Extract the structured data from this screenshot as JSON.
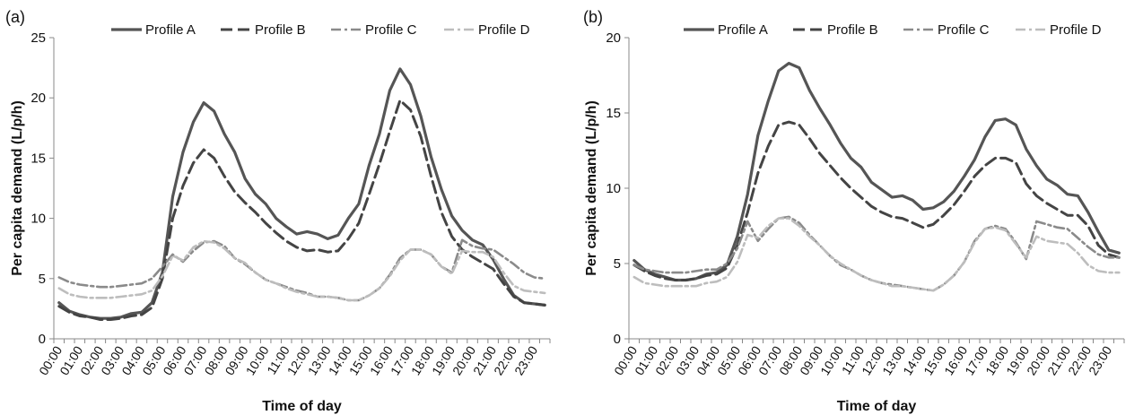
{
  "chart_data": [
    {
      "panel_label": "(a)",
      "type": "line",
      "xlabel": "Time of day",
      "ylabel": "Per capita demand (L/p/h)",
      "ylim": [
        0,
        25
      ],
      "yticks": [
        0,
        5,
        10,
        15,
        20,
        25
      ],
      "grid": false,
      "legend_position": "top",
      "x": [
        "00:00",
        "00:30",
        "01:00",
        "01:30",
        "02:00",
        "02:30",
        "03:00",
        "03:30",
        "04:00",
        "04:30",
        "05:00",
        "05:30",
        "06:00",
        "06:30",
        "07:00",
        "07:30",
        "08:00",
        "08:30",
        "09:00",
        "09:30",
        "10:00",
        "10:30",
        "11:00",
        "11:30",
        "12:00",
        "12:30",
        "13:00",
        "13:30",
        "14:00",
        "14:30",
        "15:00",
        "15:30",
        "16:00",
        "16:30",
        "17:00",
        "17:30",
        "18:00",
        "18:30",
        "19:00",
        "19:30",
        "20:00",
        "20:30",
        "21:00",
        "21:30",
        "22:00",
        "22:30",
        "23:00",
        "23:30"
      ],
      "xtick_labels": [
        "00:00",
        "01:00",
        "02:00",
        "03:00",
        "04:00",
        "05:00",
        "06:00",
        "07:00",
        "08:00",
        "09:00",
        "10:00",
        "11:00",
        "12:00",
        "13:00",
        "14:00",
        "15:00",
        "16:00",
        "17:00",
        "18:00",
        "19:00",
        "20:00",
        "21:00",
        "22:00",
        "23:00"
      ],
      "series": [
        {
          "name": "Profile A",
          "style": "solid",
          "color": "#555555",
          "values": [
            3.0,
            2.3,
            2.0,
            1.8,
            1.7,
            1.7,
            1.8,
            2.1,
            2.2,
            3.0,
            5.5,
            11.8,
            15.5,
            18.0,
            19.6,
            18.9,
            17.0,
            15.5,
            13.3,
            12.0,
            11.2,
            10.0,
            9.3,
            8.7,
            8.9,
            8.7,
            8.3,
            8.6,
            10.0,
            11.2,
            14.4,
            17.0,
            20.6,
            22.4,
            21.1,
            18.5,
            15.1,
            12.4,
            10.2,
            9.0,
            8.2,
            7.8,
            6.6,
            5.0,
            3.6,
            3.0,
            2.9,
            2.8
          ]
        },
        {
          "name": "Profile B",
          "style": "dash",
          "color": "#444444",
          "values": [
            2.7,
            2.2,
            1.9,
            1.8,
            1.6,
            1.6,
            1.7,
            1.9,
            2.0,
            2.6,
            5.0,
            10.0,
            12.7,
            14.6,
            15.7,
            15.0,
            13.5,
            12.2,
            11.3,
            10.5,
            9.6,
            8.8,
            8.1,
            7.6,
            7.3,
            7.4,
            7.2,
            7.3,
            8.3,
            9.6,
            12.0,
            14.5,
            17.2,
            19.8,
            19.0,
            16.8,
            13.5,
            10.5,
            8.5,
            7.4,
            6.8,
            6.3,
            5.8,
            4.6,
            3.5,
            3.0,
            2.9,
            2.8
          ]
        },
        {
          "name": "Profile C",
          "style": "dashdot",
          "color": "#8a8a8a",
          "values": [
            5.1,
            4.7,
            4.5,
            4.4,
            4.3,
            4.3,
            4.4,
            4.5,
            4.6,
            5.0,
            6.0,
            7.0,
            6.4,
            7.3,
            8.0,
            8.1,
            7.7,
            6.7,
            6.2,
            5.5,
            4.9,
            4.6,
            4.3,
            4.0,
            3.8,
            3.5,
            3.5,
            3.4,
            3.2,
            3.2,
            3.6,
            4.2,
            5.3,
            6.7,
            7.4,
            7.4,
            7.0,
            6.0,
            5.5,
            8.2,
            7.7,
            7.5,
            7.4,
            6.8,
            6.2,
            5.5,
            5.1,
            5.0
          ]
        },
        {
          "name": "Profile D",
          "style": "dashdot",
          "color": "#bdbdbd",
          "values": [
            4.2,
            3.7,
            3.5,
            3.4,
            3.4,
            3.4,
            3.5,
            3.6,
            3.7,
            4.0,
            5.2,
            6.9,
            6.5,
            7.6,
            8.1,
            8.0,
            7.5,
            6.7,
            6.3,
            5.5,
            4.9,
            4.6,
            4.2,
            3.9,
            3.7,
            3.5,
            3.5,
            3.4,
            3.2,
            3.2,
            3.6,
            4.2,
            5.2,
            6.5,
            7.4,
            7.4,
            7.0,
            6.0,
            5.4,
            7.3,
            7.2,
            7.2,
            6.8,
            5.5,
            4.4,
            4.0,
            3.9,
            3.8
          ]
        }
      ]
    },
    {
      "panel_label": "(b)",
      "type": "line",
      "xlabel": "Time of day",
      "ylabel": "Per capita demand (L/p/h)",
      "ylim": [
        0,
        20
      ],
      "yticks": [
        0,
        5,
        10,
        15,
        20
      ],
      "grid": false,
      "legend_position": "top",
      "x": [
        "00:00",
        "00:30",
        "01:00",
        "01:30",
        "02:00",
        "02:30",
        "03:00",
        "03:30",
        "04:00",
        "04:30",
        "05:00",
        "05:30",
        "06:00",
        "06:30",
        "07:00",
        "07:30",
        "08:00",
        "08:30",
        "09:00",
        "09:30",
        "10:00",
        "10:30",
        "11:00",
        "11:30",
        "12:00",
        "12:30",
        "13:00",
        "13:30",
        "14:00",
        "14:30",
        "15:00",
        "15:30",
        "16:00",
        "16:30",
        "17:00",
        "17:30",
        "18:00",
        "18:30",
        "19:00",
        "19:30",
        "20:00",
        "20:30",
        "21:00",
        "21:30",
        "22:00",
        "22:30",
        "23:00",
        "23:30"
      ],
      "xtick_labels": [
        "00:00",
        "01:00",
        "02:00",
        "03:00",
        "04:00",
        "05:00",
        "06:00",
        "07:00",
        "08:00",
        "09:00",
        "10:00",
        "11:00",
        "12:00",
        "13:00",
        "14:00",
        "15:00",
        "16:00",
        "17:00",
        "18:00",
        "19:00",
        "20:00",
        "21:00",
        "22:00",
        "23:00"
      ],
      "series": [
        {
          "name": "Profile A",
          "style": "solid",
          "color": "#555555",
          "values": [
            5.2,
            4.6,
            4.3,
            4.1,
            3.9,
            3.9,
            4.0,
            4.3,
            4.4,
            4.9,
            6.8,
            9.6,
            13.5,
            15.8,
            17.8,
            18.3,
            18.0,
            16.5,
            15.3,
            14.2,
            13.0,
            12.0,
            11.4,
            10.4,
            9.9,
            9.4,
            9.5,
            9.2,
            8.6,
            8.7,
            9.1,
            9.8,
            10.8,
            11.9,
            13.4,
            14.5,
            14.6,
            14.2,
            12.6,
            11.5,
            10.6,
            10.2,
            9.6,
            9.5,
            8.4,
            7.1,
            5.9,
            5.7
          ]
        },
        {
          "name": "Profile B",
          "style": "dash",
          "color": "#444444",
          "values": [
            4.9,
            4.5,
            4.2,
            4.0,
            3.9,
            3.9,
            4.0,
            4.2,
            4.3,
            4.7,
            6.2,
            8.4,
            11.0,
            12.8,
            14.2,
            14.4,
            14.2,
            13.3,
            12.3,
            11.5,
            10.7,
            10.0,
            9.4,
            8.8,
            8.4,
            8.1,
            8.0,
            7.7,
            7.4,
            7.6,
            8.2,
            8.9,
            9.8,
            10.8,
            11.5,
            12.0,
            12.0,
            11.7,
            10.3,
            9.5,
            9.0,
            8.6,
            8.2,
            8.2,
            7.5,
            6.2,
            5.6,
            5.4
          ]
        },
        {
          "name": "Profile C",
          "style": "dashdot",
          "color": "#8a8a8a",
          "values": [
            4.9,
            4.6,
            4.5,
            4.4,
            4.4,
            4.4,
            4.5,
            4.6,
            4.6,
            5.0,
            6.0,
            7.8,
            6.5,
            7.3,
            8.0,
            8.1,
            7.7,
            6.9,
            6.2,
            5.5,
            4.9,
            4.6,
            4.2,
            3.9,
            3.7,
            3.6,
            3.5,
            3.4,
            3.3,
            3.2,
            3.6,
            4.2,
            5.1,
            6.5,
            7.3,
            7.5,
            7.3,
            6.4,
            5.3,
            7.8,
            7.6,
            7.4,
            7.3,
            6.7,
            6.1,
            5.6,
            5.4,
            5.4
          ]
        },
        {
          "name": "Profile D",
          "style": "dashdot",
          "color": "#bdbdbd",
          "values": [
            4.1,
            3.7,
            3.6,
            3.5,
            3.5,
            3.5,
            3.5,
            3.7,
            3.8,
            4.1,
            5.1,
            6.9,
            6.7,
            7.5,
            8.0,
            8.0,
            7.5,
            6.8,
            6.2,
            5.5,
            5.0,
            4.6,
            4.2,
            3.9,
            3.7,
            3.5,
            3.5,
            3.4,
            3.3,
            3.2,
            3.6,
            4.2,
            5.1,
            6.4,
            7.3,
            7.4,
            7.2,
            6.3,
            5.4,
            6.8,
            6.5,
            6.4,
            6.3,
            5.7,
            4.9,
            4.5,
            4.4,
            4.4
          ]
        }
      ]
    }
  ]
}
